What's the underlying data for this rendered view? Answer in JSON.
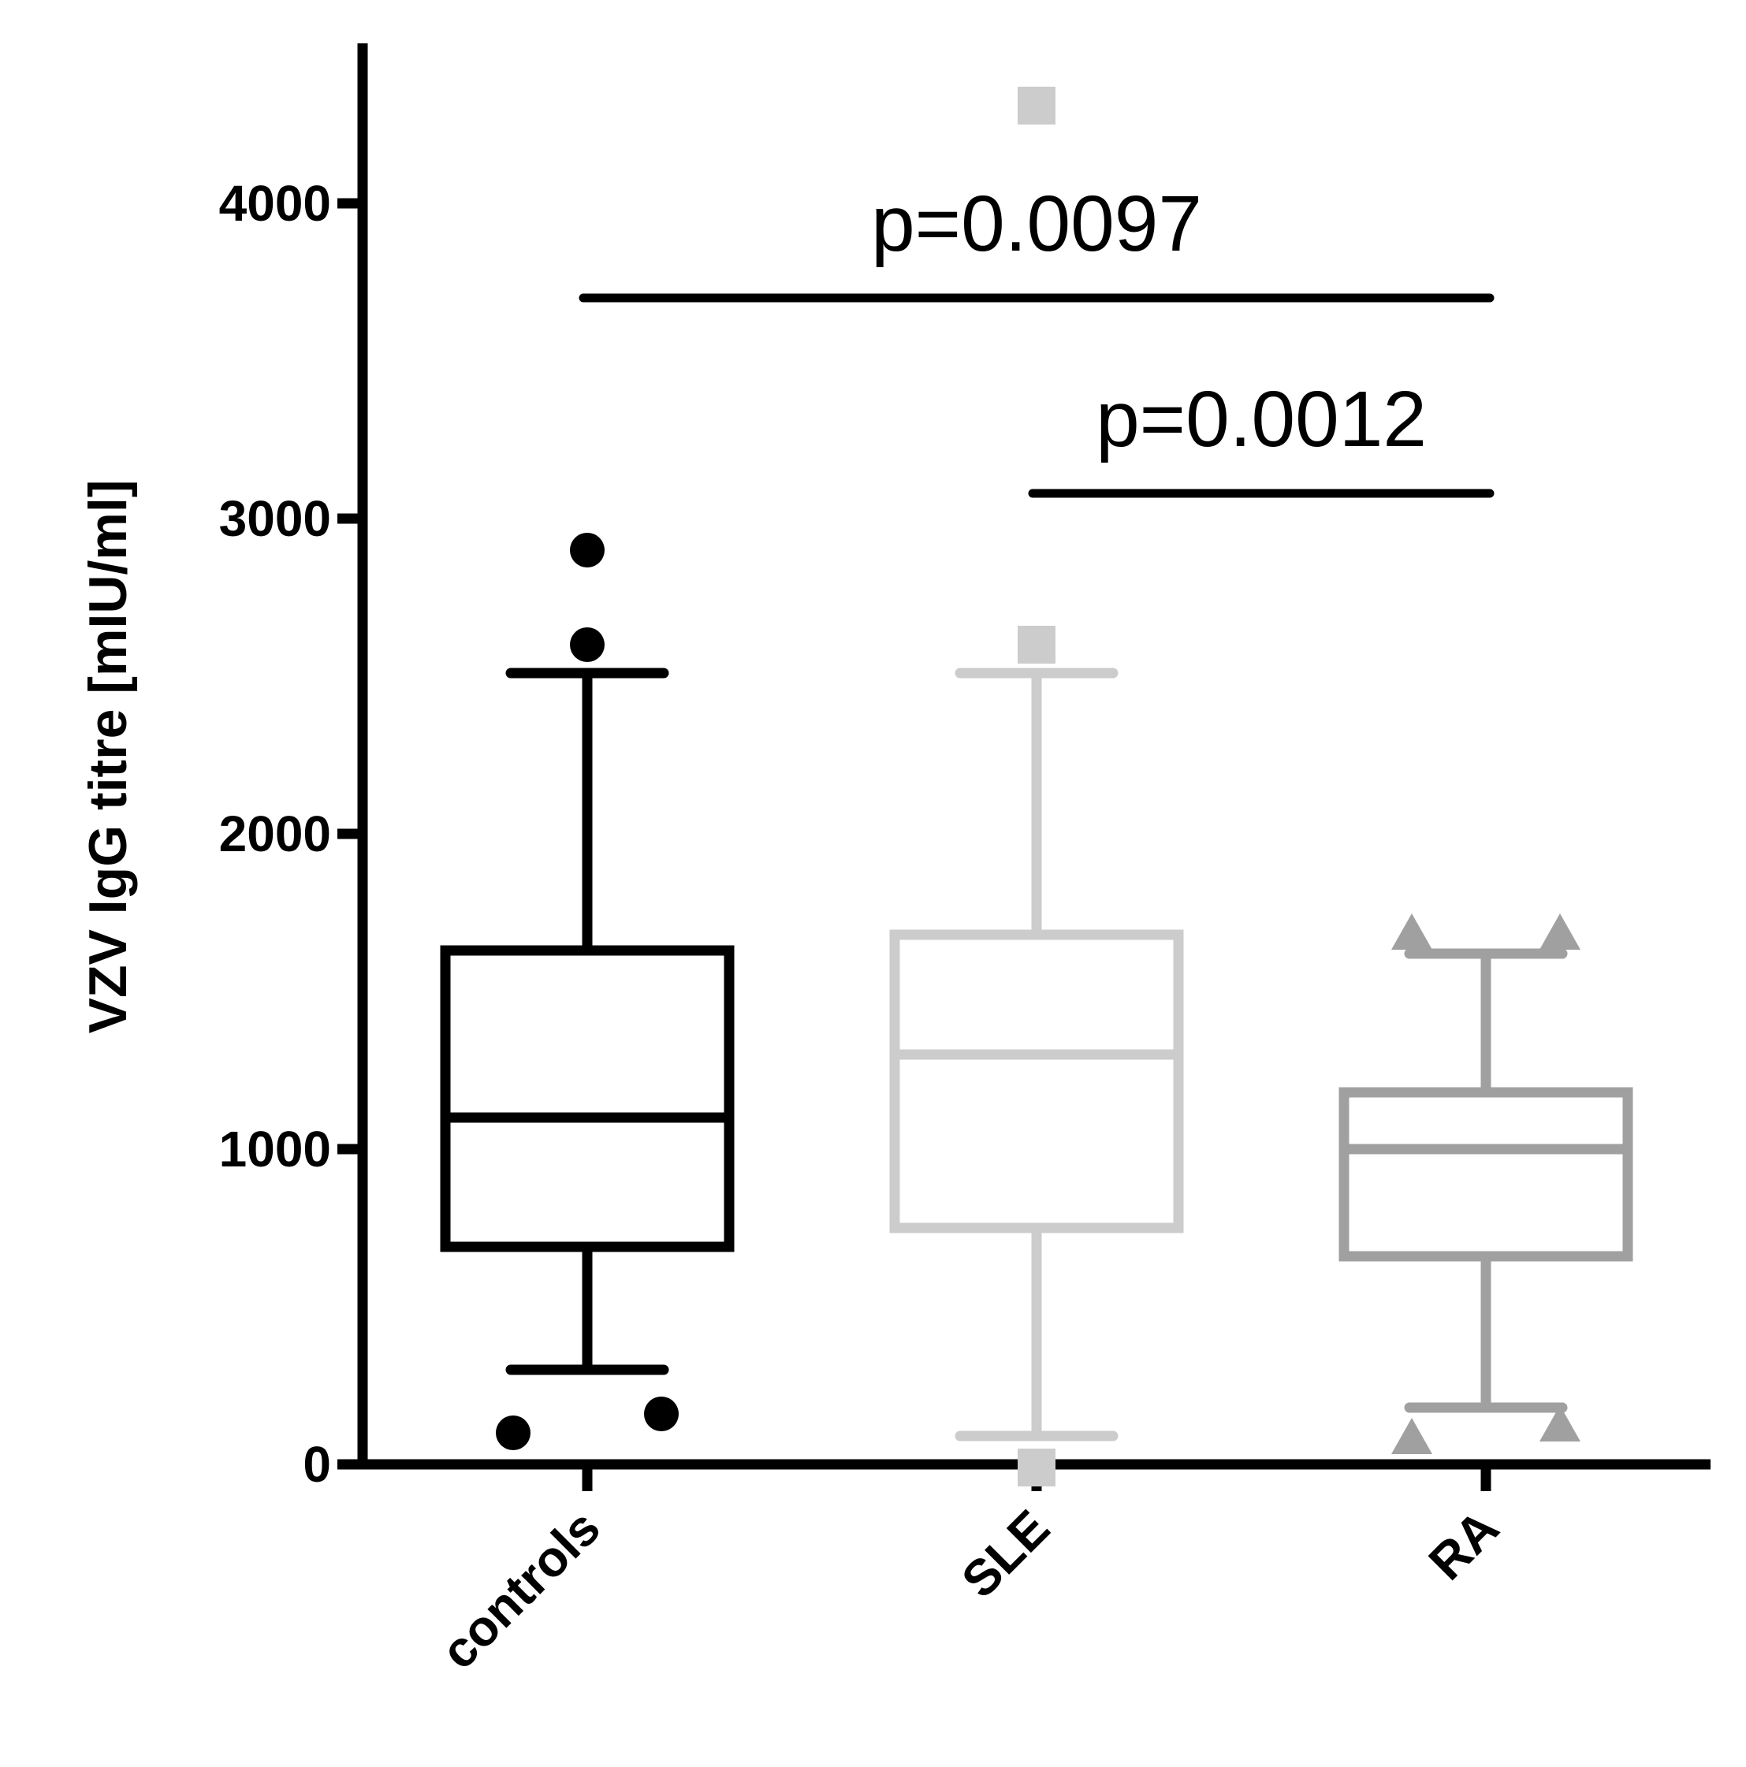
{
  "chart_data": {
    "type": "box",
    "title": "",
    "xlabel": "",
    "ylabel": "VZV IgG titre [mIU/ml]",
    "ylim": [
      0,
      4500
    ],
    "yticks": [
      0,
      1000,
      2000,
      3000,
      4000
    ],
    "ytick_labels": [
      "0",
      "1000",
      "2000",
      "3000",
      "4000"
    ],
    "grid": false,
    "legend": "none",
    "categories": [
      "controls",
      "SLE",
      "RA"
    ],
    "series": [
      {
        "category": "controls",
        "color": "#000000",
        "marker": "circle",
        "whisker_low": 300,
        "q1": 690,
        "median": 1100,
        "q3": 1630,
        "whisker_high": 2510,
        "outliers": [
          {
            "offset": -0.2,
            "value": 100
          },
          {
            "offset": 0.2,
            "value": 160
          },
          {
            "offset": 0.0,
            "value": 2600
          },
          {
            "offset": 0.0,
            "value": 2900
          }
        ]
      },
      {
        "category": "SLE",
        "color": "#cccccc",
        "marker": "square",
        "whisker_low": 90,
        "q1": 750,
        "median": 1300,
        "q3": 1680,
        "whisker_high": 2510,
        "outliers": [
          {
            "offset": 0.0,
            "value": -10
          },
          {
            "offset": 0.0,
            "value": 2600
          },
          {
            "offset": 0.0,
            "value": 4310
          }
        ]
      },
      {
        "category": "RA",
        "color": "#a0a0a0",
        "marker": "triangle",
        "whisker_low": 180,
        "q1": 660,
        "median": 1000,
        "q3": 1180,
        "whisker_high": 1620,
        "outliers": [
          {
            "offset": -0.2,
            "value": 90
          },
          {
            "offset": 0.2,
            "value": 130
          },
          {
            "offset": -0.2,
            "value": 1690
          },
          {
            "offset": 0.2,
            "value": 1690
          }
        ]
      }
    ],
    "annotations": [
      {
        "text": "p=0.0097",
        "from": "controls",
        "to": "RA",
        "y": 3700
      },
      {
        "text": "p=0.0012",
        "from": "SLE",
        "to": "RA",
        "y": 3080
      }
    ]
  }
}
